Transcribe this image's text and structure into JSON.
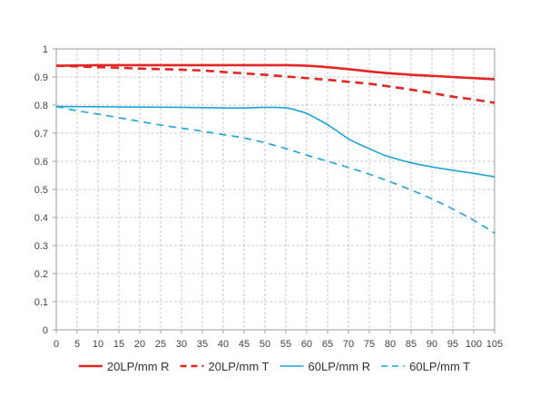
{
  "chart_data": {
    "type": "line",
    "title": "",
    "xlabel": "",
    "ylabel": "",
    "xlim": [
      0,
      105
    ],
    "ylim": [
      0,
      1
    ],
    "x_ticks": [
      "0",
      "5",
      "10",
      "15",
      "20",
      "25",
      "30",
      "35",
      "40",
      "45",
      "50",
      "55",
      "60",
      "65",
      "70",
      "75",
      "80",
      "85",
      "90",
      "95",
      "100",
      "105"
    ],
    "y_ticks": [
      "0",
      "0.1",
      "0.2",
      "0.3",
      "0.4",
      "0.5",
      "0.6",
      "0.7",
      "0.8",
      "0.9",
      "1"
    ],
    "grid": true,
    "legend_position": "bottom",
    "series": [
      {
        "name": "20LP/mm R",
        "color": "#e52521",
        "dash": "solid",
        "points": [
          [
            0,
            0.94
          ],
          [
            10,
            0.942
          ],
          [
            20,
            0.942
          ],
          [
            30,
            0.942
          ],
          [
            40,
            0.942
          ],
          [
            50,
            0.942
          ],
          [
            55,
            0.942
          ],
          [
            60,
            0.94
          ],
          [
            65,
            0.935
          ],
          [
            70,
            0.928
          ],
          [
            75,
            0.92
          ],
          [
            80,
            0.913
          ],
          [
            85,
            0.908
          ],
          [
            90,
            0.904
          ],
          [
            95,
            0.9
          ],
          [
            100,
            0.896
          ],
          [
            105,
            0.892
          ]
        ]
      },
      {
        "name": "20LP/mm T",
        "color": "#e52521",
        "dash": "dashed",
        "points": [
          [
            0,
            0.94
          ],
          [
            5,
            0.938
          ],
          [
            10,
            0.935
          ],
          [
            15,
            0.933
          ],
          [
            20,
            0.93
          ],
          [
            25,
            0.928
          ],
          [
            30,
            0.926
          ],
          [
            35,
            0.923
          ],
          [
            40,
            0.918
          ],
          [
            45,
            0.913
          ],
          [
            50,
            0.908
          ],
          [
            55,
            0.902
          ],
          [
            60,
            0.896
          ],
          [
            65,
            0.89
          ],
          [
            70,
            0.883
          ],
          [
            75,
            0.876
          ],
          [
            80,
            0.866
          ],
          [
            85,
            0.855
          ],
          [
            90,
            0.843
          ],
          [
            95,
            0.83
          ],
          [
            100,
            0.82
          ],
          [
            105,
            0.808
          ]
        ]
      },
      {
        "name": "60LP/mm R",
        "color": "#1da3d8",
        "dash": "solid",
        "points": [
          [
            0,
            0.795
          ],
          [
            10,
            0.794
          ],
          [
            20,
            0.793
          ],
          [
            30,
            0.792
          ],
          [
            40,
            0.79
          ],
          [
            45,
            0.79
          ],
          [
            50,
            0.792
          ],
          [
            55,
            0.79
          ],
          [
            58,
            0.78
          ],
          [
            60,
            0.77
          ],
          [
            62,
            0.755
          ],
          [
            65,
            0.73
          ],
          [
            68,
            0.7
          ],
          [
            70,
            0.68
          ],
          [
            72,
            0.665
          ],
          [
            75,
            0.645
          ],
          [
            78,
            0.625
          ],
          [
            80,
            0.615
          ],
          [
            85,
            0.595
          ],
          [
            90,
            0.58
          ],
          [
            95,
            0.568
          ],
          [
            100,
            0.557
          ],
          [
            105,
            0.545
          ]
        ]
      },
      {
        "name": "60LP/mm T",
        "color": "#1da3d8",
        "dash": "dashed",
        "points": [
          [
            0,
            0.795
          ],
          [
            5,
            0.78
          ],
          [
            10,
            0.768
          ],
          [
            15,
            0.755
          ],
          [
            20,
            0.742
          ],
          [
            25,
            0.729
          ],
          [
            30,
            0.718
          ],
          [
            35,
            0.707
          ],
          [
            40,
            0.695
          ],
          [
            45,
            0.683
          ],
          [
            50,
            0.666
          ],
          [
            55,
            0.645
          ],
          [
            60,
            0.622
          ],
          [
            65,
            0.6
          ],
          [
            70,
            0.578
          ],
          [
            75,
            0.554
          ],
          [
            80,
            0.527
          ],
          [
            85,
            0.498
          ],
          [
            90,
            0.466
          ],
          [
            95,
            0.43
          ],
          [
            100,
            0.39
          ],
          [
            105,
            0.345
          ]
        ]
      }
    ]
  }
}
